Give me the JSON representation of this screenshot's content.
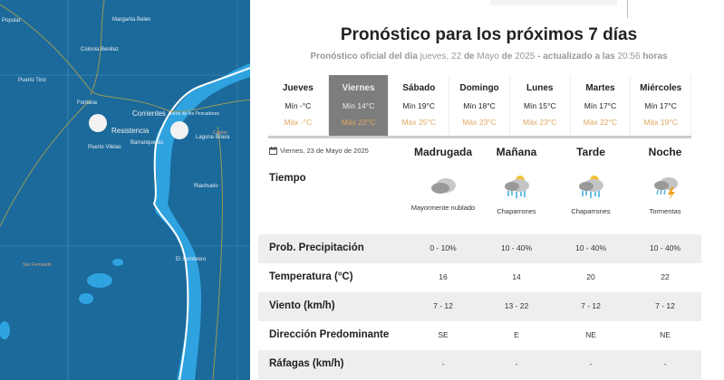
{
  "map": {
    "labels": [
      "Popular",
      "Margarita Belen",
      "Colonia Benitez",
      "Puerto Tirol",
      "Fontana",
      "Corrientes",
      "Barrio de los Pescadores",
      "Resistencia",
      "Barranqueras",
      "Puerto Vilelas",
      "Laguna Brava",
      "Capital",
      "Riachuelo",
      "El Sombrero",
      "San Fernando"
    ]
  },
  "header": {
    "title": "Pronóstico para los próximos 7 días",
    "sub_prefix": "Pronóstico oficial del día",
    "sub_date_day": "jueves, 22",
    "sub_de1": "de",
    "sub_month": "Mayo",
    "sub_de2": "de",
    "sub_year": "2025",
    "sub_updated": "- actualizado a las",
    "sub_time": "20:56",
    "sub_hours": "horas"
  },
  "days": [
    {
      "name": "Jueves",
      "min": "Mín -°C",
      "max": "Máx -°C"
    },
    {
      "name": "Viernes",
      "min": "Mín 14°C",
      "max": "Máx 22°C",
      "selected": true
    },
    {
      "name": "Sábado",
      "min": "Mín 19°C",
      "max": "Máx 25°C"
    },
    {
      "name": "Domingo",
      "min": "Mín 18°C",
      "max": "Máx 23°C"
    },
    {
      "name": "Lunes",
      "min": "Mín 15°C",
      "max": "Máx 23°C"
    },
    {
      "name": "Martes",
      "min": "Mín 17°C",
      "max": "Máx 22°C"
    },
    {
      "name": "Miércoles",
      "min": "Mín 17°C",
      "max": "Máx 19°C"
    }
  ],
  "detail": {
    "date": "Viernes, 23 de Mayo de 2025",
    "periods": [
      "Madrugada",
      "Mañana",
      "Tarde",
      "Noche"
    ],
    "tiempo_label": "Tiempo",
    "weather": [
      {
        "icon": "cloudy-icon",
        "desc": "Mayormente nublado"
      },
      {
        "icon": "showers-icon",
        "desc": "Chaparrones"
      },
      {
        "icon": "showers-icon",
        "desc": "Chaparrones"
      },
      {
        "icon": "storm-icon",
        "desc": "Tormentas"
      }
    ],
    "rows": [
      {
        "label": "Prob. Precipitación",
        "values": [
          "0 - 10%",
          "10 - 40%",
          "10 - 40%",
          "10 - 40%"
        ]
      },
      {
        "label": "Temperatura (°C)",
        "values": [
          "16",
          "14",
          "20",
          "22"
        ]
      },
      {
        "label": "Viento (km/h)",
        "values": [
          "7 - 12",
          "13 - 22",
          "7 - 12",
          "7 - 12"
        ]
      },
      {
        "label": "Dirección Predominante",
        "values": [
          "SE",
          "E",
          "NE",
          "NE"
        ]
      },
      {
        "label": "Ráfagas (km/h)",
        "values": [
          "-",
          "-",
          "-",
          "-"
        ]
      }
    ]
  }
}
